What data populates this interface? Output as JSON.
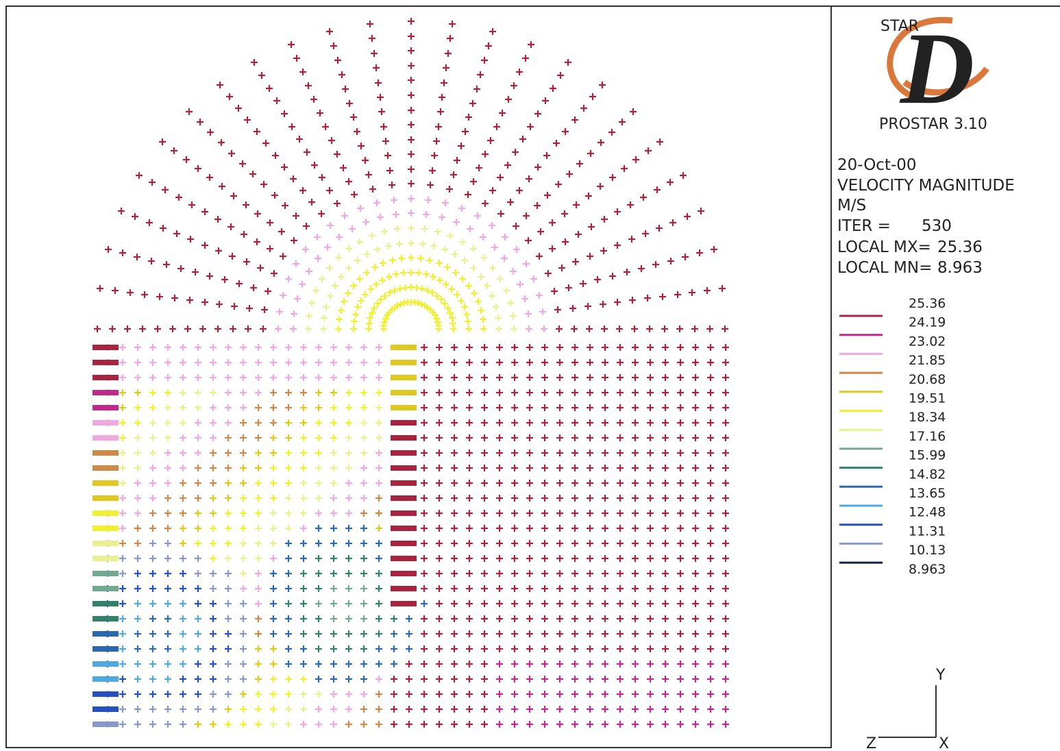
{
  "logo": {
    "brand": "STAR",
    "letter": "D",
    "product": "PROSTAR 3.10"
  },
  "info": {
    "date": "20-Oct-00",
    "quantity": "VELOCITY MAGNITUDE",
    "units": "M/S",
    "iter_label": "ITER =",
    "iter": "530",
    "max_label": "LOCAL MX=",
    "max": "25.36",
    "min_label": "LOCAL MN=",
    "min": "8.963"
  },
  "legend": {
    "levels": [
      "25.36",
      "24.19",
      "23.02",
      "21.85",
      "20.68",
      "19.51",
      "18.34",
      "17.16",
      "15.99",
      "14.82",
      "13.65",
      "12.48",
      "11.31",
      "10.13",
      "8.963"
    ],
    "colors": [
      "#a8243e",
      "#c02890",
      "#f0a8e0",
      "#d08848",
      "#e0c820",
      "#f0f030",
      "#e8f090",
      "#70a890",
      "#30806a",
      "#2a68b0",
      "#50a8e0",
      "#2450c0",
      "#8898c8",
      "#142040"
    ]
  },
  "axes": {
    "y": "Y",
    "z": "Z",
    "x": "X"
  }
}
